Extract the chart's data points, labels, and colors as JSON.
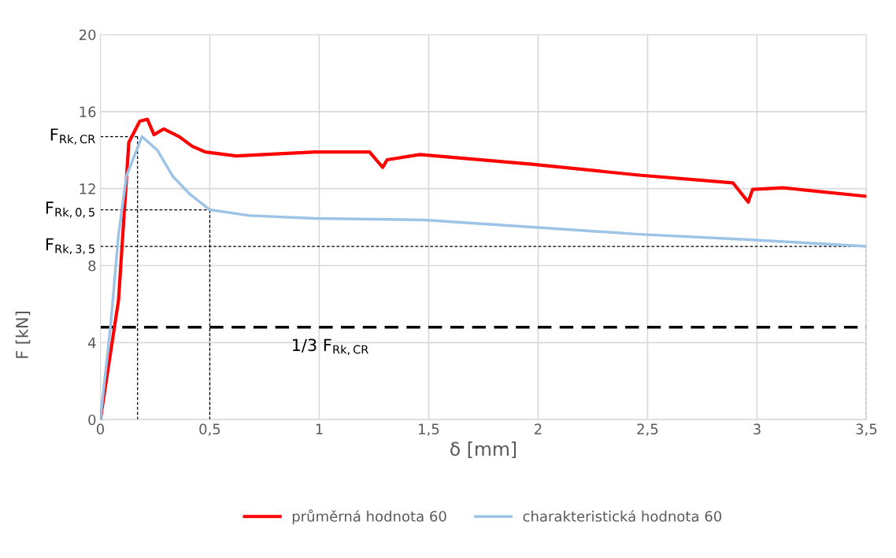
{
  "chart_data": {
    "type": "line",
    "xlabel": "δ [mm]",
    "ylabel": "F [kN]",
    "xlim": [
      0,
      3.5
    ],
    "ylim": [
      0,
      20
    ],
    "xticks": [
      0,
      {
        "value": 0.5,
        "label": "0,5"
      },
      1,
      {
        "value": 1.5,
        "label": "1,5"
      },
      2,
      {
        "value": 2.5,
        "label": "2,5"
      },
      3,
      {
        "value": 3.5,
        "label": "3,5"
      }
    ],
    "yticks": [
      0,
      4,
      8,
      12,
      16,
      20
    ],
    "grid": true,
    "legend": "bottom",
    "line_style": "solid",
    "marker": "none",
    "series": [
      {
        "name": "průměrná hodnota 60",
        "color": "#ff0000",
        "x": [
          0,
          0.083,
          0.13,
          0.18,
          0.215,
          0.245,
          0.29,
          0.36,
          0.42,
          0.48,
          0.62,
          0.8,
          0.98,
          1.23,
          1.29,
          1.31,
          1.46,
          1.97,
          2.46,
          2.89,
          2.96,
          2.98,
          3.12,
          3.5
        ],
        "values": [
          0,
          6.2,
          14.4,
          15.5,
          15.6,
          14.8,
          15.1,
          14.7,
          14.2,
          13.9,
          13.7,
          13.8,
          13.9,
          13.9,
          13.1,
          13.5,
          13.77,
          13.27,
          12.7,
          12.3,
          11.3,
          11.96,
          12.04,
          11.6
        ]
      },
      {
        "name": "charakteristická hodnota 60",
        "color": "#9dc3e6",
        "x": [
          0,
          0.047,
          0.083,
          0.119,
          0.19,
          0.26,
          0.33,
          0.41,
          0.5,
          0.68,
          0.98,
          1.31,
          1.48,
          1.97,
          2.46,
          2.96,
          3.5
        ],
        "values": [
          0,
          4.9,
          9.6,
          12.65,
          14.7,
          14.0,
          12.65,
          11.7,
          10.9,
          10.6,
          10.45,
          10.4,
          10.37,
          10.0,
          9.63,
          9.35,
          9.0
        ]
      }
    ],
    "ref_lines": [
      {
        "axis": "y",
        "value": 14.7,
        "label": "F$_{Rk,CR}$",
        "color": "#000000",
        "line_style": "dotted"
      },
      {
        "axis": "y",
        "value": 10.9,
        "label": "F$_{Rk,0,5}$",
        "color": "#000000",
        "line_style": "dotted"
      },
      {
        "axis": "y",
        "value": 9.0,
        "label": "F$_{Rk,3,5}$",
        "color": "#000000",
        "line_style": "dotted"
      },
      {
        "axis": "x",
        "value": 0.17,
        "color": "#000000",
        "line_style": "dotted"
      },
      {
        "axis": "x",
        "value": 0.5,
        "color": "#000000",
        "line_style": "dotted"
      },
      {
        "axis": "x",
        "value": 3.5,
        "color": "#000000",
        "line_style": "dotted"
      },
      {
        "axis": "y",
        "value": 4.8,
        "label": "1/3 F$_{Rk,CR}$",
        "color": "#000000",
        "line_style": "dashed"
      }
    ]
  }
}
